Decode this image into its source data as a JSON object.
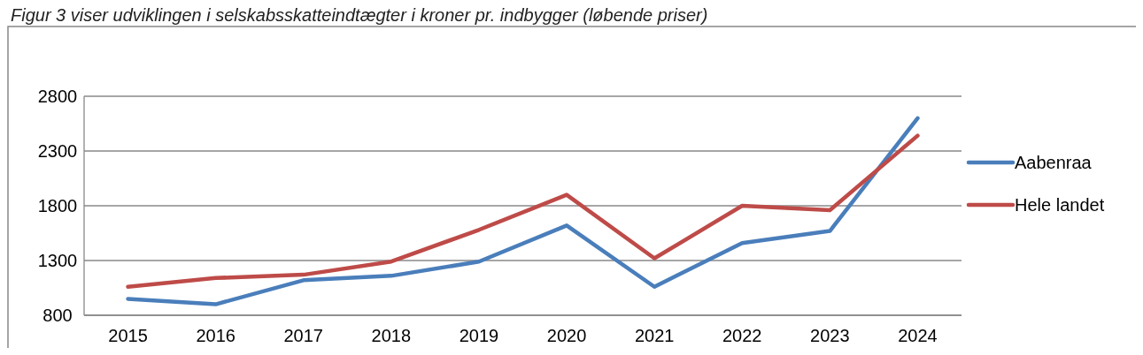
{
  "chart_data": {
    "type": "line",
    "title": "Figur 3 viser udviklingen i selskabsskatteindtægter i kroner pr. indbygger (løbende priser)",
    "categories": [
      "2015",
      "2016",
      "2017",
      "2018",
      "2019",
      "2020",
      "2021",
      "2022",
      "2023",
      "2024"
    ],
    "series": [
      {
        "name": "Aabenraa",
        "color": "#4a7ebb",
        "values": [
          950,
          900,
          1120,
          1160,
          1290,
          1620,
          1060,
          1460,
          1570,
          2600
        ]
      },
      {
        "name": "Hele landet",
        "color": "#be4b48",
        "values": [
          1060,
          1140,
          1170,
          1290,
          1580,
          1900,
          1320,
          1800,
          1760,
          2440
        ]
      }
    ],
    "ylim": [
      800,
      2800
    ],
    "yticks": [
      800,
      1300,
      1800,
      2300,
      2800
    ],
    "grid": "y",
    "legend": "right",
    "marker": "none",
    "line_style": "solid"
  }
}
